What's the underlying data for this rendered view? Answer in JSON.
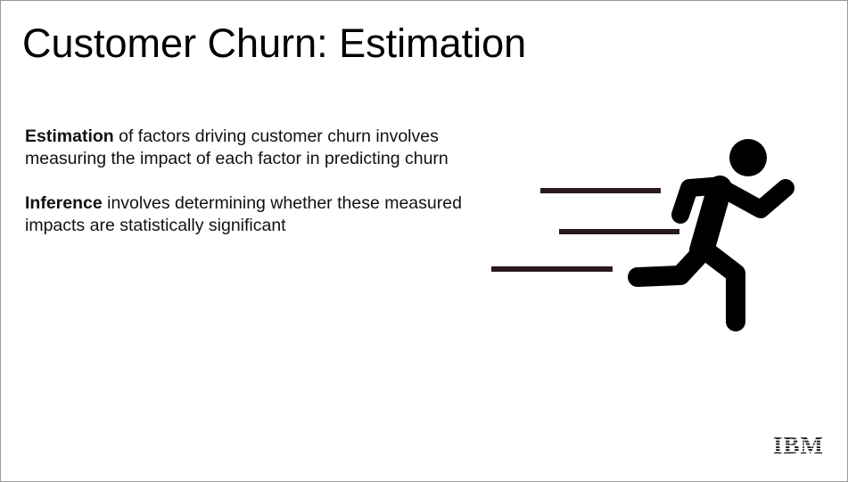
{
  "title": "Customer Churn: Estimation",
  "paragraphs": [
    {
      "term": "Estimation",
      "text": "of factors driving customer churn involves measuring the impact of each factor in predicting churn"
    },
    {
      "term": "Inference",
      "text": "involves determining whether these measured impacts are statistically significant"
    }
  ],
  "logo": "IBM"
}
